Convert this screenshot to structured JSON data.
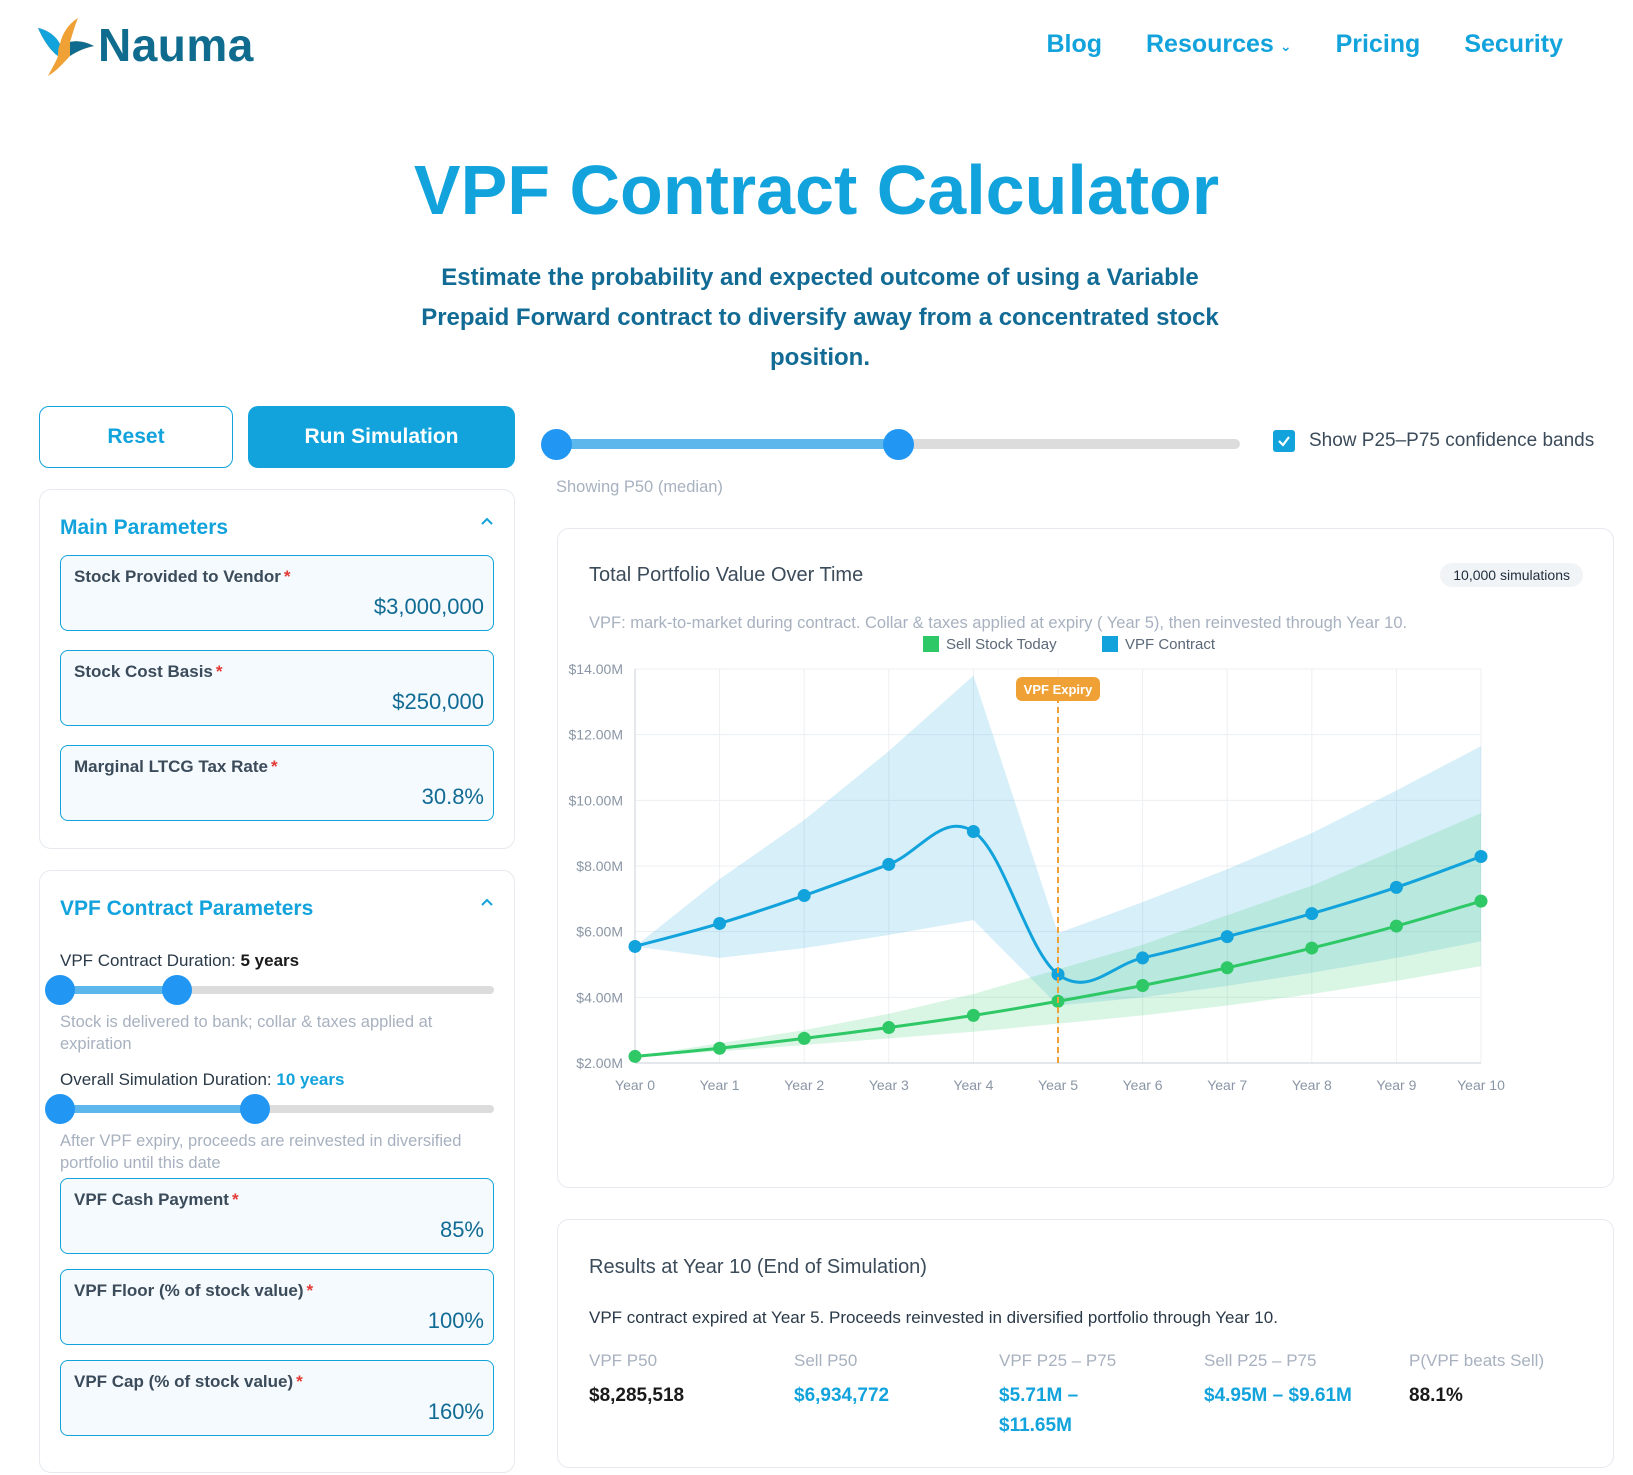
{
  "brand": {
    "name": "Nauma",
    "logo_icon": "hummingbird-icon"
  },
  "nav": {
    "items": [
      {
        "label": "Blog"
      },
      {
        "label": "Resources",
        "has_dropdown": true
      },
      {
        "label": "Pricing"
      },
      {
        "label": "Security"
      }
    ]
  },
  "hero": {
    "title": "VPF Contract Calculator",
    "subtitle": "Estimate the probability and expected outcome of using a Variable Prepaid Forward contract to diversify away from a concentrated stock position."
  },
  "actions": {
    "reset_label": "Reset",
    "run_label": "Run Simulation"
  },
  "main_params": {
    "title": "Main Parameters",
    "fields": [
      {
        "label": "Stock Provided to Vendor",
        "value": "$3,000,000"
      },
      {
        "label": "Stock Cost Basis",
        "value": "$250,000"
      },
      {
        "label": "Marginal LTCG Tax Rate",
        "value": "30.8%"
      }
    ]
  },
  "vpf_params": {
    "title": "VPF Contract Parameters",
    "contract_duration": {
      "label": "VPF Contract Duration:",
      "value": "5 years",
      "hint": "Stock is delivered to bank; collar & taxes applied at expiration",
      "range_fraction": [
        0.0,
        0.27
      ]
    },
    "simulation_duration": {
      "label": "Overall Simulation Duration:",
      "value": "10 years",
      "hint": "After VPF expiry, proceeds are reinvested in diversified portfolio until this date",
      "range_fraction": [
        0.0,
        0.45
      ]
    },
    "fields": [
      {
        "label": "VPF Cash Payment",
        "value": "85%"
      },
      {
        "label": "VPF Floor (% of stock value)",
        "value": "100%"
      },
      {
        "label": "VPF Cap (% of stock value)",
        "value": "160%"
      }
    ]
  },
  "percentile_slider": {
    "showing": "Showing P50 (median)",
    "range_fraction": [
      0.0,
      0.5
    ]
  },
  "confidence_bands": {
    "label": "Show P25–P75 confidence bands",
    "checked": true
  },
  "chart_card": {
    "title": "Total Portfolio Value Over Time",
    "badge": "10,000 simulations",
    "subtitle": "VPF: mark-to-market during contract. Collar & taxes applied at expiry ( Year 5), then reinvested through Year 10."
  },
  "chart_data": {
    "type": "line",
    "categories": [
      "Year 0",
      "Year 1",
      "Year 2",
      "Year 3",
      "Year 4",
      "Year 5",
      "Year 6",
      "Year 7",
      "Year 8",
      "Year 9",
      "Year 10"
    ],
    "ylim": [
      2,
      14
    ],
    "yticks": [
      "$2.00M",
      "$4.00M",
      "$6.00M",
      "$8.00M",
      "$10.00M",
      "$12.00M",
      "$14.00M"
    ],
    "ytick_values": [
      2,
      4,
      6,
      8,
      10,
      12,
      14
    ],
    "annotation": {
      "label": "VPF Expiry",
      "x_index": 5,
      "color": "#f0a135"
    },
    "legend_position": "top-center",
    "grid": true,
    "series": [
      {
        "name": "Sell Stock Today",
        "color": "#2ec866",
        "values": [
          2.2,
          2.45,
          2.75,
          3.08,
          3.45,
          3.88,
          4.36,
          4.9,
          5.5,
          6.17,
          6.93
        ],
        "band_low": [
          2.2,
          2.35,
          2.55,
          2.75,
          2.95,
          3.2,
          3.45,
          3.75,
          4.1,
          4.5,
          4.95
        ],
        "band_high": [
          2.2,
          2.6,
          3.0,
          3.5,
          4.1,
          4.85,
          5.6,
          6.5,
          7.4,
          8.5,
          9.61
        ]
      },
      {
        "name": "VPF Contract",
        "color": "#12a3dc",
        "values": [
          5.55,
          6.25,
          7.1,
          8.05,
          9.05,
          4.7,
          5.2,
          5.85,
          6.55,
          7.35,
          8.29
        ],
        "band_low": [
          5.55,
          5.2,
          5.5,
          5.9,
          6.35,
          3.75,
          4.0,
          4.35,
          4.75,
          5.2,
          5.71
        ],
        "band_high": [
          5.55,
          7.6,
          9.4,
          11.5,
          13.8,
          5.95,
          6.9,
          7.9,
          9.0,
          10.3,
          11.65
        ]
      }
    ]
  },
  "results": {
    "title": "Results at Year 10 (End of Simulation)",
    "description": "VPF contract expired at Year 5. Proceeds reinvested in diversified portfolio through Year 10.",
    "columns": [
      {
        "label": "VPF P50",
        "value": "$8,285,518",
        "style": "dark"
      },
      {
        "label": "Sell P50",
        "value": "$6,934,772",
        "style": "blue"
      },
      {
        "label": "VPF P25 – P75",
        "value": "$5.71M –",
        "value2": "$11.65M",
        "style": "blue"
      },
      {
        "label": "Sell P25 – P75",
        "value": "$4.95M – $9.61M",
        "style": "blue"
      },
      {
        "label": "P(VPF beats Sell)",
        "value": "88.1%",
        "style": "dark"
      }
    ]
  }
}
